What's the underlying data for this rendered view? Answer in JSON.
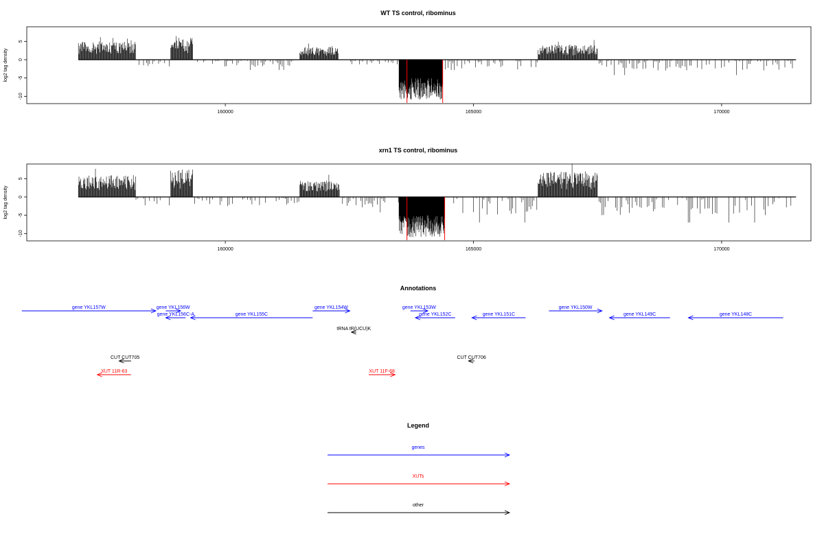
{
  "chart_data": [
    {
      "type": "bar",
      "title": "WT TS control, ribominus",
      "ylabel": "log2 tag density",
      "xlabel": "",
      "xlim": [
        156000,
        171800
      ],
      "ylim": [
        -12,
        9
      ],
      "xticks": [
        160000,
        165000,
        170000
      ],
      "yticks": [
        -10,
        -5,
        0,
        5
      ],
      "grid": false,
      "highlight_color": "#ff0000",
      "highlights": [
        163660,
        164380
      ],
      "segments": [
        {
          "start": 157040,
          "end": 158200,
          "sign": 1,
          "amp": 5
        },
        {
          "start": 158200,
          "end": 158900,
          "sign": -1,
          "amp": 2
        },
        {
          "start": 158900,
          "end": 159350,
          "sign": 1,
          "amp": 6
        },
        {
          "start": 159380,
          "end": 161500,
          "sign": -1,
          "amp": 2
        },
        {
          "start": 161500,
          "end": 162280,
          "sign": 1,
          "amp": 3.5
        },
        {
          "start": 162280,
          "end": 163500,
          "sign": -1,
          "amp": 1.5
        },
        {
          "start": 163500,
          "end": 164380,
          "sign": -1,
          "amp": 11
        },
        {
          "start": 164400,
          "end": 166300,
          "sign": -1,
          "amp": 3
        },
        {
          "start": 166300,
          "end": 167500,
          "sign": 1,
          "amp": 4
        },
        {
          "start": 167500,
          "end": 171500,
          "sign": -1,
          "amp": 3
        }
      ]
    },
    {
      "type": "bar",
      "title": "xrn1 TS control, ribominus",
      "ylabel": "log2 tag density",
      "xlabel": "",
      "xlim": [
        156000,
        171800
      ],
      "ylim": [
        -12,
        9
      ],
      "xticks": [
        160000,
        165000,
        170000
      ],
      "yticks": [
        -10,
        -5,
        0,
        5
      ],
      "grid": false,
      "highlight_color": "#ff0000",
      "highlights": [
        163660,
        164420
      ],
      "segments": [
        {
          "start": 157040,
          "end": 158200,
          "sign": 1,
          "amp": 6
        },
        {
          "start": 158200,
          "end": 158900,
          "sign": -1,
          "amp": 2.5
        },
        {
          "start": 158900,
          "end": 159350,
          "sign": 1,
          "amp": 7.5
        },
        {
          "start": 159380,
          "end": 161500,
          "sign": -1,
          "amp": 2.5
        },
        {
          "start": 161500,
          "end": 162300,
          "sign": 1,
          "amp": 4.5
        },
        {
          "start": 162300,
          "end": 163500,
          "sign": -1,
          "amp": 3
        },
        {
          "start": 163500,
          "end": 164420,
          "sign": -1,
          "amp": 11
        },
        {
          "start": 164420,
          "end": 166300,
          "sign": -1,
          "amp": 5
        },
        {
          "start": 166300,
          "end": 167500,
          "sign": 1,
          "amp": 7
        },
        {
          "start": 167500,
          "end": 171500,
          "sign": -1,
          "amp": 5
        }
      ]
    }
  ],
  "annotations": {
    "title": "Annotations",
    "items": [
      {
        "label": "gene YKL157W",
        "start": 155900,
        "end": 158600,
        "row": 0,
        "color": "#0000ff",
        "dir": "right"
      },
      {
        "label": "gene YKL156W",
        "start": 158800,
        "end": 159100,
        "row": 0,
        "color": "#0000ff",
        "dir": "right"
      },
      {
        "label": "gene YKL156C-A",
        "start": 158800,
        "end": 159200,
        "row": 1,
        "color": "#0000ff",
        "dir": "left"
      },
      {
        "label": "gene YKL155C",
        "start": 159300,
        "end": 161760,
        "row": 1,
        "color": "#0000ff",
        "dir": "left"
      },
      {
        "label": "gene YKL154W",
        "start": 161760,
        "end": 162510,
        "row": 0,
        "color": "#0000ff",
        "dir": "right"
      },
      {
        "label": "gene YKL153W",
        "start": 163730,
        "end": 164080,
        "row": 0,
        "color": "#0000ff",
        "dir": "right"
      },
      {
        "label": "gene YKL152C",
        "start": 163830,
        "end": 164630,
        "row": 1,
        "color": "#0000ff",
        "dir": "left"
      },
      {
        "label": "gene YKL151C",
        "start": 164970,
        "end": 166050,
        "row": 1,
        "color": "#0000ff",
        "dir": "left"
      },
      {
        "label": "gene YKL150W",
        "start": 166520,
        "end": 167590,
        "row": 0,
        "color": "#0000ff",
        "dir": "right"
      },
      {
        "label": "gene YKL149C",
        "start": 167740,
        "end": 168960,
        "row": 1,
        "color": "#0000ff",
        "dir": "left"
      },
      {
        "label": "gene YKL148C",
        "start": 169330,
        "end": 171240,
        "row": 1,
        "color": "#0000ff",
        "dir": "left"
      },
      {
        "label": "tRNA tR(UCU)K",
        "start": 162540,
        "end": 162640,
        "row": 2,
        "color": "#000000",
        "dir": "left"
      },
      {
        "label": "CUT CUT705",
        "start": 157860,
        "end": 158100,
        "row": 3,
        "color": "#000000",
        "dir": "left"
      },
      {
        "label": "CUT CUT706",
        "start": 164900,
        "end": 165020,
        "row": 3,
        "color": "#000000",
        "dir": "left"
      },
      {
        "label": "XUT 11R-63",
        "start": 157420,
        "end": 158100,
        "row": 4,
        "color": "#ff0000",
        "dir": "left"
      },
      {
        "label": "XUT 11F-68",
        "start": 162890,
        "end": 163420,
        "row": 4,
        "color": "#ff0000",
        "dir": "right"
      }
    ]
  },
  "legend": {
    "title": "Legend",
    "items": [
      {
        "label": "genes",
        "color": "#0000ff"
      },
      {
        "label": "XUTs",
        "color": "#ff0000"
      },
      {
        "label": "other",
        "color": "#000000"
      }
    ]
  }
}
